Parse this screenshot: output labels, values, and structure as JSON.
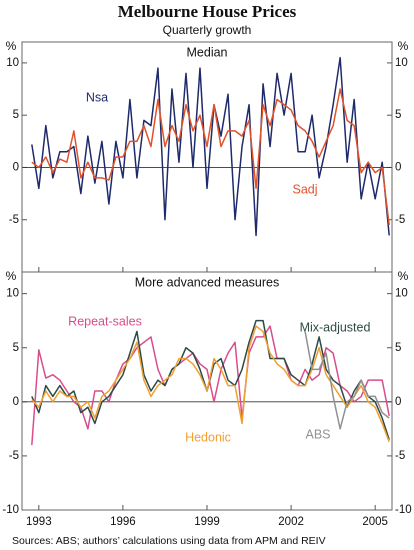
{
  "title": "Melbourne House Prices",
  "subtitle": "Quarterly growth",
  "source": "Sources: ABS; authors’ calculations using data from APM and REIV",
  "chart_data": [
    {
      "type": "line",
      "title": "Median",
      "ylabel": "%",
      "x": [
        1992.75,
        1993,
        1993.25,
        1993.5,
        1993.75,
        1994,
        1994.25,
        1994.5,
        1994.75,
        1995,
        1995.25,
        1995.5,
        1995.75,
        1996,
        1996.25,
        1996.5,
        1996.75,
        1997,
        1997.25,
        1997.5,
        1997.75,
        1998,
        1998.25,
        1998.5,
        1998.75,
        1999,
        1999.25,
        1999.5,
        1999.75,
        2000,
        2000.25,
        2000.5,
        2000.75,
        2001,
        2001.25,
        2001.5,
        2001.75,
        2002,
        2002.25,
        2002.5,
        2002.75,
        2003,
        2003.25,
        2003.5,
        2003.75,
        2004,
        2004.25,
        2004.5,
        2004.75,
        2005,
        2005.25,
        2005.5
      ],
      "series": [
        {
          "name": "Nsa",
          "color": "#1f2a6b",
          "values": [
            2.2,
            -2,
            4,
            -1,
            1.5,
            1.5,
            2,
            -2.5,
            3,
            -1.5,
            2.5,
            -3.5,
            2.5,
            -1,
            6.5,
            -1,
            4.5,
            4,
            9.5,
            -5,
            7.5,
            0.5,
            9,
            0,
            9.5,
            -2,
            6,
            3,
            7,
            -5,
            2,
            6,
            -6.5,
            8,
            2,
            9,
            5,
            9,
            1.5,
            1.5,
            5,
            -1,
            2,
            6,
            10.5,
            0.5,
            6.5,
            -3,
            0.5,
            -3,
            0.5,
            -6.5
          ]
        },
        {
          "name": "Sadj",
          "color": "#e0522b",
          "values": [
            0.5,
            0,
            1,
            -0.5,
            0.8,
            0.5,
            3.5,
            -1,
            0.5,
            -1,
            -1,
            -1.2,
            1,
            1,
            2.5,
            2.5,
            4,
            2,
            6.5,
            2,
            4,
            2.5,
            6,
            3.5,
            5,
            2,
            6,
            2,
            3.5,
            3.5,
            3,
            4.5,
            -2,
            6,
            4,
            6.5,
            6,
            5.5,
            4,
            3.5,
            2.5,
            1,
            2.5,
            4,
            7.5,
            4.5,
            4,
            -0.5,
            0.5,
            -0.5,
            0,
            -5.5
          ]
        }
      ],
      "xlim": [
        1992.4,
        2005.6
      ],
      "xticks": [
        1993,
        1996,
        1999,
        2002,
        2005
      ],
      "ylim": [
        -10,
        12
      ],
      "yticks": [
        -5,
        0,
        5,
        10
      ]
    },
    {
      "type": "line",
      "title": "More advanced measures",
      "ylabel": "%",
      "x": [
        1992.75,
        1993,
        1993.25,
        1993.5,
        1993.75,
        1994,
        1994.25,
        1994.5,
        1994.75,
        1995,
        1995.25,
        1995.5,
        1995.75,
        1996,
        1996.25,
        1996.5,
        1996.75,
        1997,
        1997.25,
        1997.5,
        1997.75,
        1998,
        1998.25,
        1998.5,
        1998.75,
        1999,
        1999.25,
        1999.5,
        1999.75,
        2000,
        2000.25,
        2000.5,
        2000.75,
        2001,
        2001.25,
        2001.5,
        2001.75,
        2002,
        2002.25,
        2002.5,
        2002.75,
        2003,
        2003.25,
        2003.5,
        2003.75,
        2004,
        2004.25,
        2004.5,
        2004.75,
        2005,
        2005.25,
        2005.5
      ],
      "series": [
        {
          "name": "Repeat-sales",
          "color": "#d94d8c",
          "values": [
            -4,
            4.8,
            2.2,
            2.5,
            2,
            1,
            0,
            -0.5,
            -2.5,
            1,
            1,
            0,
            2,
            3.5,
            4,
            5,
            5.5,
            6,
            3,
            1.5,
            3,
            3.5,
            4,
            4.5,
            3.5,
            3,
            0,
            3,
            4.5,
            5.5,
            -1.5,
            4.5,
            6,
            6,
            7,
            4,
            4,
            2,
            1.5,
            3,
            2,
            2.5,
            5,
            4.5,
            1.5,
            1,
            0,
            0.5,
            2,
            2,
            2,
            -1.3
          ]
        },
        {
          "name": "Mix-adjusted",
          "color": "#2d4a45",
          "values": [
            0.5,
            -1,
            1.5,
            0.5,
            1.5,
            0.5,
            1,
            -1,
            -0.5,
            -2,
            0,
            0.5,
            1.5,
            2.5,
            4.5,
            6.5,
            2.5,
            1,
            2,
            1.5,
            3,
            3.5,
            5,
            4.5,
            3,
            1,
            3.5,
            4,
            2,
            1.5,
            3,
            5.5,
            7.5,
            7.5,
            4,
            4,
            4,
            2.5,
            2,
            1.5,
            3.5,
            6,
            3,
            2,
            1.5,
            -0.5,
            1,
            2,
            0.5,
            0,
            -1.5,
            -3.5
          ]
        },
        {
          "name": "Hedonic",
          "color": "#f0a030",
          "values": [
            0.2,
            -0.5,
            1,
            0,
            1,
            0.5,
            0.5,
            -0.5,
            0,
            -1.5,
            0.5,
            1,
            2,
            3,
            4,
            5.5,
            2,
            0.5,
            1.5,
            2,
            2.5,
            4,
            4,
            3.5,
            2.5,
            1,
            4,
            3,
            1.5,
            1.5,
            -2,
            5,
            7,
            6.5,
            4.5,
            3.5,
            3,
            2,
            1.5,
            1.5,
            3,
            5,
            2.5,
            1.5,
            0.5,
            -0.5,
            0.5,
            1.5,
            0,
            -0.5,
            -2,
            -3.7
          ]
        },
        {
          "name": "ABS",
          "color": "#909090",
          "values": [
            null,
            null,
            null,
            null,
            null,
            null,
            null,
            null,
            null,
            null,
            null,
            null,
            null,
            null,
            null,
            null,
            null,
            null,
            null,
            null,
            null,
            null,
            null,
            null,
            null,
            null,
            null,
            null,
            null,
            null,
            null,
            null,
            null,
            null,
            null,
            null,
            null,
            null,
            null,
            6.5,
            3,
            3,
            4.5,
            0.5,
            -2.5,
            0,
            0.5,
            2,
            0.5,
            0.5,
            -1,
            -1.5
          ]
        }
      ],
      "xlim": [
        1992.4,
        2005.6
      ],
      "xticks": [
        1993,
        1996,
        1999,
        2002,
        2005
      ],
      "ylim": [
        -10,
        12
      ],
      "yticks": [
        -10,
        -5,
        0,
        5,
        10
      ]
    }
  ]
}
